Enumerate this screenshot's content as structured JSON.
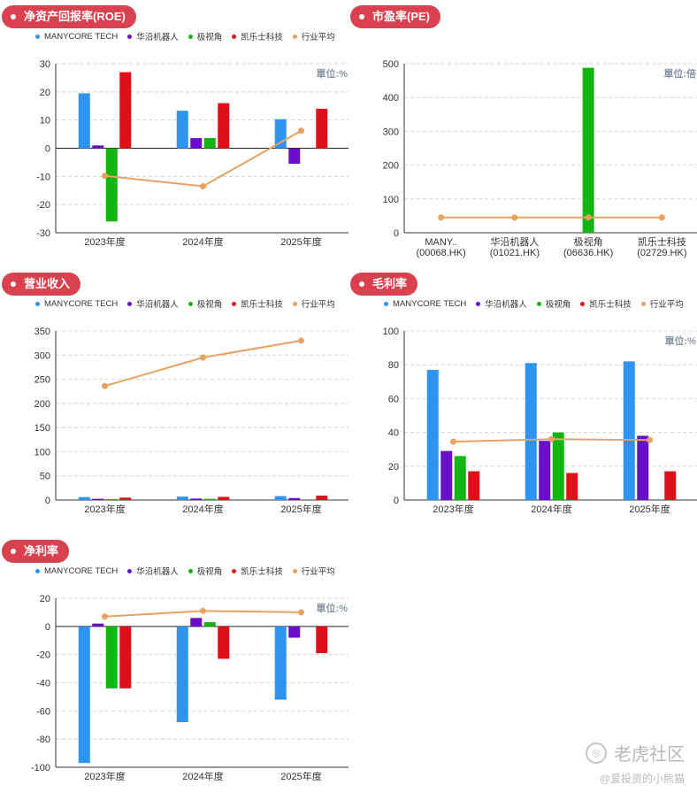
{
  "legend_items": [
    {
      "name": "MANYCORE TECH",
      "color": "#2f94f0"
    },
    {
      "name": "华沿机器人",
      "color": "#6a0fc9"
    },
    {
      "name": "极视角",
      "color": "#12b512"
    },
    {
      "name": "凯乐士科技",
      "color": "#e0101a"
    },
    {
      "name": "行业平均",
      "color": "#e8a160"
    }
  ],
  "chart_data": [
    {
      "id": "roe",
      "type": "bar",
      "title": "净资产回报率(ROE)",
      "unit_label": "單位:%",
      "has_legend": true,
      "categories": [
        "2023年度",
        "2024年度",
        "2025年度"
      ],
      "ylim": [
        -30,
        30
      ],
      "yticks": [
        -30,
        -20,
        -10,
        0,
        10,
        20,
        30
      ],
      "series": [
        {
          "name": "MANYCORE TECH",
          "values": [
            19.5,
            13.3,
            10.3
          ]
        },
        {
          "name": "华沿机器人",
          "values": [
            1.0,
            3.6,
            -5.5
          ]
        },
        {
          "name": "极视角",
          "values": [
            -26,
            3.6,
            0
          ]
        },
        {
          "name": "凯乐士科技",
          "values": [
            27,
            16,
            14
          ]
        }
      ],
      "line": {
        "name": "行业平均",
        "values": [
          -9.8,
          -13.5,
          6.2
        ]
      }
    },
    {
      "id": "pe",
      "type": "bar",
      "title": "市盈率(PE)",
      "unit_label": "單位:倍",
      "has_legend": false,
      "categories": [
        "MANY..\n(00068.HK)",
        "华沿机器人\n(01021.HK)",
        "极视角\n(06636.HK)",
        "凯乐士科技\n(02729.HK)"
      ],
      "ylim": [
        0,
        500
      ],
      "yticks": [
        0,
        100,
        200,
        300,
        400,
        500
      ],
      "single_series": {
        "values": [
          0,
          0,
          488,
          0
        ],
        "colors": [
          "#2f94f0",
          "#6a0fc9",
          "#12b512",
          "#e0101a"
        ]
      },
      "line": {
        "name": "行业平均",
        "values": [
          45,
          45,
          45,
          45
        ]
      }
    },
    {
      "id": "revenue",
      "type": "bar",
      "title": "营业收入",
      "unit_label": "",
      "has_legend": true,
      "categories": [
        "2023年度",
        "2024年度",
        "2025年度"
      ],
      "ylim": [
        0,
        350
      ],
      "yticks": [
        0,
        50,
        100,
        150,
        200,
        250,
        300,
        350
      ],
      "series": [
        {
          "name": "MANYCORE TECH",
          "values": [
            6,
            7,
            8
          ]
        },
        {
          "name": "华沿机器人",
          "values": [
            2.5,
            3,
            4
          ]
        },
        {
          "name": "极视角",
          "values": [
            2,
            2.5,
            0
          ]
        },
        {
          "name": "凯乐士科技",
          "values": [
            5,
            6.5,
            9
          ]
        }
      ],
      "line": {
        "name": "行业平均",
        "values": [
          236,
          295,
          330
        ]
      }
    },
    {
      "id": "gross",
      "type": "bar",
      "title": "毛利率",
      "unit_label": "單位:%",
      "has_legend": true,
      "categories": [
        "2023年度",
        "2024年度",
        "2025年度"
      ],
      "ylim": [
        0,
        100
      ],
      "yticks": [
        0,
        20,
        40,
        60,
        80,
        100
      ],
      "series": [
        {
          "name": "MANYCORE TECH",
          "values": [
            77,
            81,
            82
          ]
        },
        {
          "name": "华沿机器人",
          "values": [
            29,
            35,
            38
          ]
        },
        {
          "name": "极视角",
          "values": [
            26,
            40,
            0
          ]
        },
        {
          "name": "凯乐士科技",
          "values": [
            17,
            16,
            17
          ]
        }
      ],
      "line": {
        "name": "行业平均",
        "values": [
          34.5,
          36,
          35.5
        ]
      }
    },
    {
      "id": "net",
      "type": "bar",
      "title": "净利率",
      "unit_label": "單位:%",
      "has_legend": true,
      "categories": [
        "2023年度",
        "2024年度",
        "2025年度"
      ],
      "ylim": [
        -100,
        20
      ],
      "yticks": [
        -100,
        -80,
        -60,
        -40,
        -20,
        0,
        20
      ],
      "series": [
        {
          "name": "MANYCORE TECH",
          "values": [
            -97,
            -68,
            -52
          ]
        },
        {
          "name": "华沿机器人",
          "values": [
            2,
            6,
            -8
          ]
        },
        {
          "name": "极视角",
          "values": [
            -44,
            3,
            0
          ]
        },
        {
          "name": "凯乐士科技",
          "values": [
            -44,
            -23,
            -19
          ]
        }
      ],
      "line": {
        "name": "行业平均",
        "values": [
          7,
          11,
          10
        ]
      }
    }
  ],
  "watermark": {
    "main": "老虎社区",
    "sub": "@爱投资的小熊猫"
  }
}
